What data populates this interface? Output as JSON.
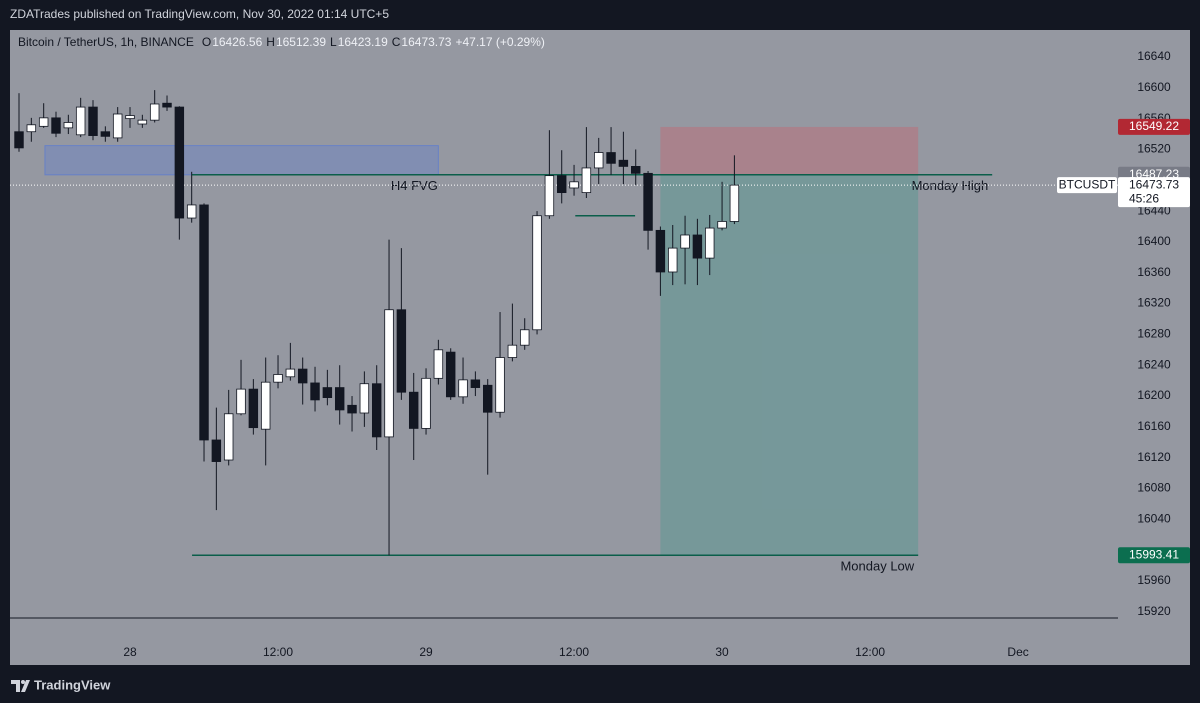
{
  "header": {
    "publisher": "ZDATrades published on TradingView.com, Nov 30, 2022 01:14 UTC+5"
  },
  "chart_data": {
    "type": "candlestick",
    "title": "Bitcoin / TetherUS, 1h, BINANCE",
    "ohlc_legend": [
      {
        "key": "O",
        "value": 16426.56
      },
      {
        "key": "H",
        "value": 16512.39
      },
      {
        "key": "L",
        "value": 16423.19
      },
      {
        "key": "C",
        "value": 16473.73
      }
    ],
    "change": "+47.17 (+0.29%)",
    "x": [
      -9,
      -8,
      -7,
      -6,
      -5,
      -4,
      -3,
      -2,
      -1,
      0,
      1,
      2,
      3,
      4,
      5,
      6,
      7,
      8,
      9,
      10,
      11,
      12,
      13,
      14,
      15,
      16,
      17,
      18,
      19,
      20,
      21,
      22,
      23,
      24,
      25,
      26,
      27,
      28,
      29,
      30,
      31,
      32,
      33,
      34,
      35,
      36,
      37,
      38,
      39,
      40,
      41,
      42,
      43,
      44,
      45,
      46,
      47,
      48,
      49
    ],
    "open": [
      16543,
      16543,
      16550,
      16561,
      16548,
      16539,
      16575,
      16543,
      16535,
      16560,
      16553,
      16558,
      16580,
      16575,
      16431,
      16448,
      16143,
      16117,
      16177,
      16209,
      16157,
      16218,
      16225,
      16235,
      16217,
      16211,
      16211,
      16188,
      16178,
      16216,
      16147,
      16312,
      16205,
      16158,
      16223,
      16257,
      16199,
      16221,
      16214,
      16179,
      16250,
      16266,
      16286,
      16434,
      16486,
      16470,
      16464,
      16496,
      16516,
      16506,
      16498,
      16489,
      16415,
      16361,
      16392,
      16409,
      16379,
      16418,
      16426.56
    ],
    "high": [
      16593,
      16561,
      16580,
      16569,
      16565,
      16587,
      16584,
      16550,
      16575,
      16575,
      16565,
      16597,
      16590,
      16576,
      16491,
      16450,
      16185,
      16208,
      16247,
      16222,
      16250,
      16253,
      16269,
      16250,
      16238,
      16234,
      16240,
      16200,
      16232,
      16240,
      16403,
      16392,
      16230,
      16236,
      16273,
      16262,
      16250,
      16232,
      16222,
      16309,
      16320,
      16301,
      16440,
      16545,
      16519,
      16500,
      16549,
      16535,
      16549,
      16543,
      16520,
      16492,
      16420,
      16422,
      16434,
      16430,
      16435,
      16478,
      16512.39
    ],
    "low": [
      16517,
      16530,
      16548,
      16536,
      16540,
      16536,
      16532,
      16530,
      16530,
      16548,
      16548,
      16555,
      16570,
      16403,
      16425,
      16115,
      16052,
      16110,
      16175,
      16150,
      16110,
      16210,
      16220,
      16189,
      16180,
      16188,
      16163,
      16154,
      16160,
      16130,
      15993.41,
      16195,
      16117,
      16150,
      16215,
      16195,
      16190,
      16200,
      16098,
      16172,
      16245,
      16260,
      16280,
      16430,
      16450,
      16460,
      16457,
      16475,
      16487,
      16475,
      16474,
      16390,
      16330,
      16344,
      16345,
      16344,
      16357,
      16415,
      16423.19
    ],
    "close": [
      16522,
      16552,
      16561,
      16541,
      16555,
      16575,
      16538,
      16537,
      16566,
      16564,
      16558,
      16579,
      16575,
      16431,
      16448,
      16143,
      16115,
      16177,
      16209,
      16159,
      16218,
      16228,
      16235,
      16217,
      16195,
      16198,
      16182,
      16178,
      16216,
      16147,
      16312,
      16205,
      16158,
      16223,
      16260,
      16199,
      16221,
      16211,
      16179,
      16250,
      16266,
      16286,
      16434,
      16486,
      16464,
      16478,
      16496,
      16516,
      16502,
      16498,
      16489,
      16415,
      16361,
      16392,
      16409,
      16379,
      16418,
      16426.56,
      16473.73
    ],
    "up_color": "#ffffff",
    "down_color": "#131722",
    "xlim": [
      -9.73,
      80.1
    ],
    "xticks": [
      {
        "value": 0,
        "label": "28"
      },
      {
        "value": 12,
        "label": "12:00"
      },
      {
        "value": 24,
        "label": "29"
      },
      {
        "value": 36,
        "label": "12:00"
      },
      {
        "value": 48,
        "label": "30"
      },
      {
        "value": 60,
        "label": "12:00"
      },
      {
        "value": 72,
        "label": "Dec"
      }
    ],
    "ylim": [
      15912,
      16675
    ],
    "yticks": [
      16640,
      16600,
      16560,
      16520,
      16440,
      16400,
      16360,
      16320,
      16280,
      16240,
      16200,
      16160,
      16120,
      16080,
      16040,
      15960,
      15920
    ],
    "fvg_zone": {
      "label": "H4 FVG",
      "x0": -6.9,
      "x1": 25,
      "bottom": 16487,
      "top": 16525,
      "color": "rgba(41,98,255,0.18)"
    },
    "position": {
      "x0": 43,
      "x1": 63.9,
      "stop": 16549.22,
      "entry": 16487.23,
      "target": 15993.41,
      "stop_color": "#b22833",
      "entry_color": "#787b86",
      "target_color": "#0b6e4f"
    },
    "levels": [
      {
        "label": "Monday High",
        "x0": 5.03,
        "x1": 69.9,
        "price": 16487.23
      },
      {
        "label": "Monday Low",
        "x0": 5.03,
        "x1": 63.9,
        "price": 15993.41
      },
      {
        "x0": 36.1,
        "x1": 40.95,
        "price": 16434
      }
    ],
    "symbol": "BTCUSDT",
    "last_price": 16473.73,
    "countdown": "45:26"
  },
  "footer": {
    "brand": "TradingView"
  }
}
